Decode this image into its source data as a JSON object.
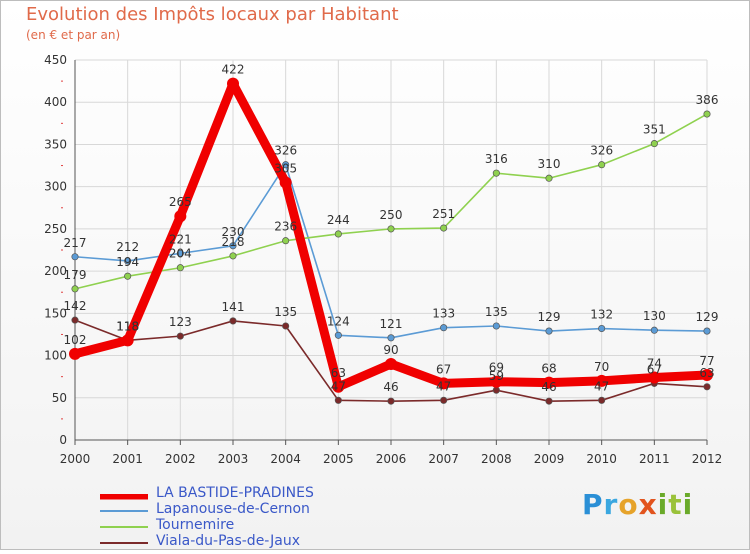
{
  "chart_data": {
    "type": "line",
    "title": "Evolution des Impôts locaux par Habitant",
    "subtitle": "(en € et par an)",
    "xlabel": "",
    "ylabel": "",
    "ylim": [
      0,
      450
    ],
    "yticks": [
      0,
      50,
      100,
      150,
      200,
      250,
      300,
      350,
      400,
      450
    ],
    "grid": true,
    "legend_position": "bottom-left",
    "categories": [
      "2000",
      "2001",
      "2002",
      "2003",
      "2004",
      "2005",
      "2006",
      "2007",
      "2008",
      "2009",
      "2010",
      "2011",
      "2012"
    ],
    "series": [
      {
        "name": "LA BASTIDE-PRADINES",
        "color": "#f00000",
        "emphasis": true,
        "values": [
          102,
          118,
          265,
          422,
          305,
          63,
          90,
          67,
          69,
          68,
          70,
          74,
          77
        ]
      },
      {
        "name": "Lapanouse-de-Cernon",
        "color": "#5b9bd5",
        "values": [
          217,
          212,
          221,
          230,
          326,
          124,
          121,
          133,
          135,
          129,
          132,
          130,
          129
        ]
      },
      {
        "name": "Tournemire",
        "color": "#8fd14f",
        "values": [
          179,
          194,
          204,
          218,
          236,
          244,
          250,
          251,
          316,
          310,
          326,
          351,
          386
        ]
      },
      {
        "name": "Viala-du-Pas-de-Jaux",
        "color": "#7b2a2a",
        "values": [
          142,
          118,
          123,
          141,
          135,
          47,
          46,
          47,
          59,
          46,
          47,
          67,
          63
        ]
      }
    ]
  },
  "brand": {
    "letters": [
      "P",
      "r",
      "o",
      "x",
      "i",
      "t",
      "i"
    ]
  }
}
